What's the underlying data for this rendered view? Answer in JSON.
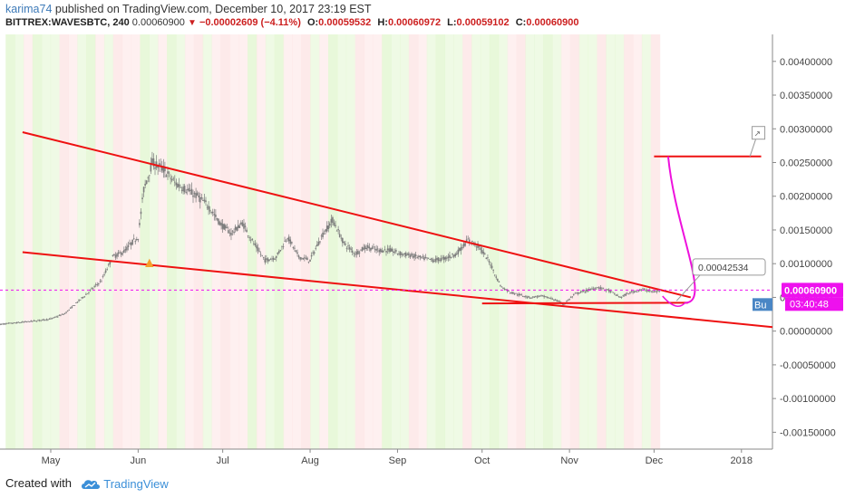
{
  "header": {
    "author": "karima74",
    "published_text": "published on TradingView.com, December 10, 2017 23:19 EST",
    "symbol": "BITTREX:WAVESBTC, 240",
    "last_price": "0.00060900",
    "change": "−0.00002609 (−4.11%)",
    "o_label": "O:",
    "o_value": "0.00059532",
    "h_label": "H:",
    "h_value": "0.00060972",
    "l_label": "L:",
    "l_value": "0.00059102",
    "c_label": "C:",
    "c_value": "0.00060900"
  },
  "footer": {
    "created_with": "Created with",
    "brand": "TradingView"
  },
  "chart_data": {
    "type": "line",
    "y_axis_labels": [
      "0.00400000",
      "0.00350000",
      "0.00300000",
      "0.00250000",
      "0.00200000",
      "0.00150000",
      "0.00100000",
      "0.00050000",
      "0.00000000",
      "-0.00050000",
      "-0.00100000",
      "-0.00150000"
    ],
    "y_axis_values": [
      0.004,
      0.0035,
      0.003,
      0.0025,
      0.002,
      0.0015,
      0.001,
      0.0005,
      0.0,
      -0.0005,
      -0.001,
      -0.0015
    ],
    "ylim": [
      -0.00175,
      0.0044
    ],
    "x_axis_labels": [
      "May",
      "Jun",
      "Jul",
      "Aug",
      "Sep",
      "Oct",
      "Nov",
      "Dec",
      "2018"
    ],
    "x_axis_days": [
      0,
      31,
      61,
      92,
      123,
      153,
      184,
      214,
      245
    ],
    "xlim": [
      -18,
      256
    ],
    "price_series": {
      "name": "WAVESBTC",
      "days": [
        -18,
        -8,
        0,
        5,
        10,
        18,
        22,
        26,
        29,
        31,
        33,
        36,
        40,
        44,
        48,
        52,
        56,
        60,
        64,
        68,
        72,
        76,
        80,
        84,
        88,
        92,
        96,
        100,
        104,
        108,
        112,
        116,
        120,
        124,
        128,
        132,
        136,
        140,
        144,
        148,
        152,
        156,
        158,
        160,
        163,
        166,
        170,
        174,
        178,
        182,
        186,
        190,
        194,
        198,
        202,
        206,
        210,
        214,
        216
      ],
      "values": [
        0.0001,
        0.00014,
        0.00018,
        0.00026,
        0.00045,
        0.00075,
        0.0011,
        0.00118,
        0.00132,
        0.0014,
        0.0021,
        0.0025,
        0.0024,
        0.0022,
        0.0021,
        0.002,
        0.00185,
        0.0016,
        0.00145,
        0.0016,
        0.0013,
        0.00105,
        0.0011,
        0.0014,
        0.0011,
        0.00105,
        0.0014,
        0.00165,
        0.0013,
        0.00115,
        0.00125,
        0.0012,
        0.0012,
        0.00115,
        0.00112,
        0.00108,
        0.00105,
        0.00108,
        0.00115,
        0.00135,
        0.00125,
        0.001,
        0.0008,
        0.00065,
        0.00058,
        0.00054,
        0.0005,
        0.00052,
        0.00048,
        0.0004,
        0.00055,
        0.0006,
        0.00065,
        0.0006,
        0.0005,
        0.00058,
        0.00062,
        0.00058,
        0.0006
      ]
    },
    "current_price_label": "0.00060900",
    "countdown_label": "03:40:48",
    "buy_label": "Bu",
    "annotations": {
      "target_label": "0.00042534",
      "pattern_label": "↗",
      "marker": "▲"
    },
    "trendlines": [
      {
        "from": [
          -10,
          0.00295
        ],
        "to": [
          227,
          0.0005
        ]
      },
      {
        "from": [
          -10,
          0.00117
        ],
        "to": [
          256,
          6e-05
        ]
      },
      {
        "from": [
          153,
          0.00041
        ],
        "to": [
          226,
          0.00042
        ]
      },
      {
        "from": [
          214,
          0.00259
        ],
        "to": [
          252,
          0.00259
        ]
      }
    ],
    "projection": {
      "from": [
        225,
        0.00042
      ],
      "to": [
        219,
        0.00259
      ],
      "via": 0.0015
    },
    "colors": {
      "candles": "#7c7c7c",
      "trendline": "#ee1111",
      "projection": "#ee11dd",
      "price_line": "#ee11ee",
      "marker": "#f5a02a",
      "bg_green": "#e4f7d4",
      "bg_red": "#fde6e6"
    }
  }
}
